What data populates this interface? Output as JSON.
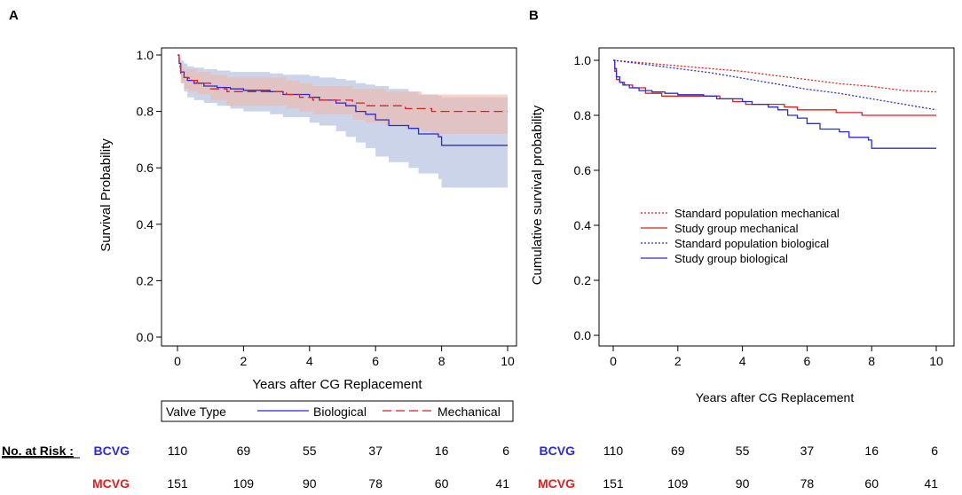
{
  "figure": {
    "panel_a_label": "A",
    "panel_b_label": "B"
  },
  "colors": {
    "biological": "#2b2bd6",
    "mechanical": "#e01f1f",
    "biological_band": "#aab8dc",
    "mechanical_band": "#f0b8aa"
  },
  "chart_data": [
    {
      "id": "A",
      "type": "line",
      "title": "",
      "xlabel": "Years after CG Replacement",
      "ylabel": "Survival Probability",
      "xlim": [
        0,
        10
      ],
      "ylim": [
        0,
        1
      ],
      "xticks": [
        0,
        2,
        4,
        6,
        8,
        10
      ],
      "yticks": [
        0.0,
        0.2,
        0.4,
        0.6,
        0.8,
        1.0
      ],
      "ytick_labels": [
        "0.0",
        "0.2",
        "0.4",
        "0.6",
        "0.8",
        "1.0"
      ],
      "legend": {
        "title": "Valve Type",
        "entries": [
          "Biological",
          "Mechanical"
        ],
        "placement": "bottom"
      },
      "series": [
        {
          "name": "Biological",
          "style": "solid",
          "color_key": "biological",
          "x": [
            0,
            0.05,
            0.1,
            0.2,
            0.3,
            0.5,
            0.8,
            1.2,
            1.6,
            2.0,
            2.8,
            3.2,
            4.0,
            4.3,
            4.8,
            5.1,
            5.4,
            5.7,
            6.0,
            6.4,
            7.0,
            7.3,
            7.9,
            8.0,
            10.0
          ],
          "y": [
            1.0,
            0.97,
            0.94,
            0.92,
            0.91,
            0.9,
            0.89,
            0.885,
            0.88,
            0.875,
            0.87,
            0.86,
            0.85,
            0.84,
            0.83,
            0.82,
            0.8,
            0.79,
            0.77,
            0.75,
            0.74,
            0.72,
            0.71,
            0.68,
            0.68
          ],
          "lower": [
            1.0,
            0.95,
            0.9,
            0.87,
            0.85,
            0.84,
            0.83,
            0.82,
            0.81,
            0.8,
            0.79,
            0.78,
            0.76,
            0.75,
            0.73,
            0.71,
            0.69,
            0.67,
            0.64,
            0.62,
            0.6,
            0.58,
            0.56,
            0.53,
            0.53
          ],
          "upper": [
            1.0,
            0.99,
            0.98,
            0.97,
            0.96,
            0.955,
            0.95,
            0.945,
            0.94,
            0.94,
            0.935,
            0.93,
            0.925,
            0.92,
            0.915,
            0.91,
            0.9,
            0.895,
            0.89,
            0.88,
            0.87,
            0.86,
            0.855,
            0.85,
            0.85
          ]
        },
        {
          "name": "Mechanical",
          "style": "dashed",
          "color_key": "mechanical",
          "x": [
            0,
            0.05,
            0.1,
            0.2,
            0.35,
            0.6,
            1.0,
            1.5,
            2.6,
            3.3,
            3.7,
            4.1,
            4.6,
            5.3,
            5.7,
            6.3,
            6.9,
            7.4,
            7.7,
            10.0
          ],
          "y": [
            1.0,
            0.96,
            0.93,
            0.92,
            0.91,
            0.9,
            0.88,
            0.87,
            0.87,
            0.86,
            0.85,
            0.84,
            0.84,
            0.83,
            0.82,
            0.82,
            0.81,
            0.81,
            0.8,
            0.8
          ],
          "lower": [
            1.0,
            0.94,
            0.9,
            0.88,
            0.87,
            0.86,
            0.84,
            0.82,
            0.82,
            0.81,
            0.8,
            0.79,
            0.79,
            0.77,
            0.76,
            0.75,
            0.74,
            0.73,
            0.72,
            0.72
          ],
          "upper": [
            1.0,
            0.98,
            0.96,
            0.95,
            0.95,
            0.94,
            0.93,
            0.92,
            0.92,
            0.91,
            0.9,
            0.89,
            0.89,
            0.88,
            0.88,
            0.87,
            0.87,
            0.86,
            0.86,
            0.86
          ]
        }
      ],
      "risk_table": {
        "header": "No. at Risk :",
        "rows": [
          {
            "label": "BCVG",
            "color_key": "biological",
            "values": [
              "110",
              "69",
              "55",
              "37",
              "16",
              "6"
            ]
          },
          {
            "label": "MCVG",
            "color_key": "mechanical",
            "values": [
              "151",
              "109",
              "90",
              "78",
              "60",
              "41"
            ]
          }
        ]
      }
    },
    {
      "id": "B",
      "type": "line",
      "title": "",
      "xlabel": "Years after CG Replacement",
      "ylabel": "Cumulative survival probability",
      "xlim": [
        0,
        10
      ],
      "ylim": [
        0,
        1
      ],
      "xticks": [
        0,
        2,
        4,
        6,
        8,
        10
      ],
      "yticks": [
        0.0,
        0.2,
        0.4,
        0.6,
        0.8,
        1.0
      ],
      "ytick_labels": [
        "0.0",
        "0.2",
        "0.4",
        "0.6",
        "0.8",
        "1.0"
      ],
      "legend": {
        "entries": [
          "Standard population mechanical",
          "Study group mechanical",
          "Standard population biological",
          "Study group biological"
        ],
        "placement": "center-left"
      },
      "series": [
        {
          "name": "Standard population mechanical",
          "style": "dotted",
          "color_key": "mechanical",
          "x": [
            0,
            1,
            2,
            3,
            4,
            5,
            6,
            7,
            8,
            9,
            10
          ],
          "y": [
            1.0,
            0.99,
            0.98,
            0.97,
            0.96,
            0.945,
            0.93,
            0.915,
            0.905,
            0.89,
            0.885
          ]
        },
        {
          "name": "Study group mechanical",
          "style": "solid",
          "color_key": "mechanical",
          "x": [
            0,
            0.05,
            0.1,
            0.2,
            0.35,
            0.6,
            1.0,
            1.5,
            2.6,
            3.3,
            3.7,
            4.1,
            4.6,
            5.3,
            5.7,
            6.3,
            6.9,
            7.4,
            7.7,
            10.0
          ],
          "y": [
            1.0,
            0.96,
            0.93,
            0.92,
            0.91,
            0.9,
            0.88,
            0.87,
            0.87,
            0.86,
            0.85,
            0.84,
            0.84,
            0.83,
            0.82,
            0.82,
            0.81,
            0.81,
            0.8,
            0.8
          ]
        },
        {
          "name": "Standard population biological",
          "style": "dotted",
          "color_key": "biological",
          "x": [
            0,
            1,
            2,
            3,
            4,
            5,
            6,
            7,
            8,
            9,
            10
          ],
          "y": [
            1.0,
            0.985,
            0.97,
            0.955,
            0.935,
            0.915,
            0.895,
            0.88,
            0.86,
            0.84,
            0.82
          ]
        },
        {
          "name": "Study group biological",
          "style": "solid",
          "color_key": "biological",
          "x": [
            0,
            0.05,
            0.1,
            0.2,
            0.3,
            0.5,
            0.8,
            1.2,
            1.6,
            2.0,
            2.8,
            3.2,
            4.0,
            4.3,
            4.8,
            5.1,
            5.4,
            5.7,
            6.0,
            6.4,
            7.0,
            7.3,
            7.9,
            8.0,
            10.0
          ],
          "y": [
            1.0,
            0.97,
            0.94,
            0.92,
            0.91,
            0.9,
            0.89,
            0.885,
            0.88,
            0.875,
            0.87,
            0.86,
            0.85,
            0.84,
            0.83,
            0.82,
            0.8,
            0.79,
            0.77,
            0.75,
            0.74,
            0.72,
            0.71,
            0.68,
            0.68
          ]
        }
      ],
      "risk_table": {
        "rows": [
          {
            "label": "BCVG",
            "color_key": "biological",
            "values": [
              "110",
              "69",
              "55",
              "37",
              "16",
              "6"
            ]
          },
          {
            "label": "MCVG",
            "color_key": "mechanical",
            "values": [
              "151",
              "109",
              "90",
              "78",
              "60",
              "41"
            ]
          }
        ]
      }
    }
  ]
}
